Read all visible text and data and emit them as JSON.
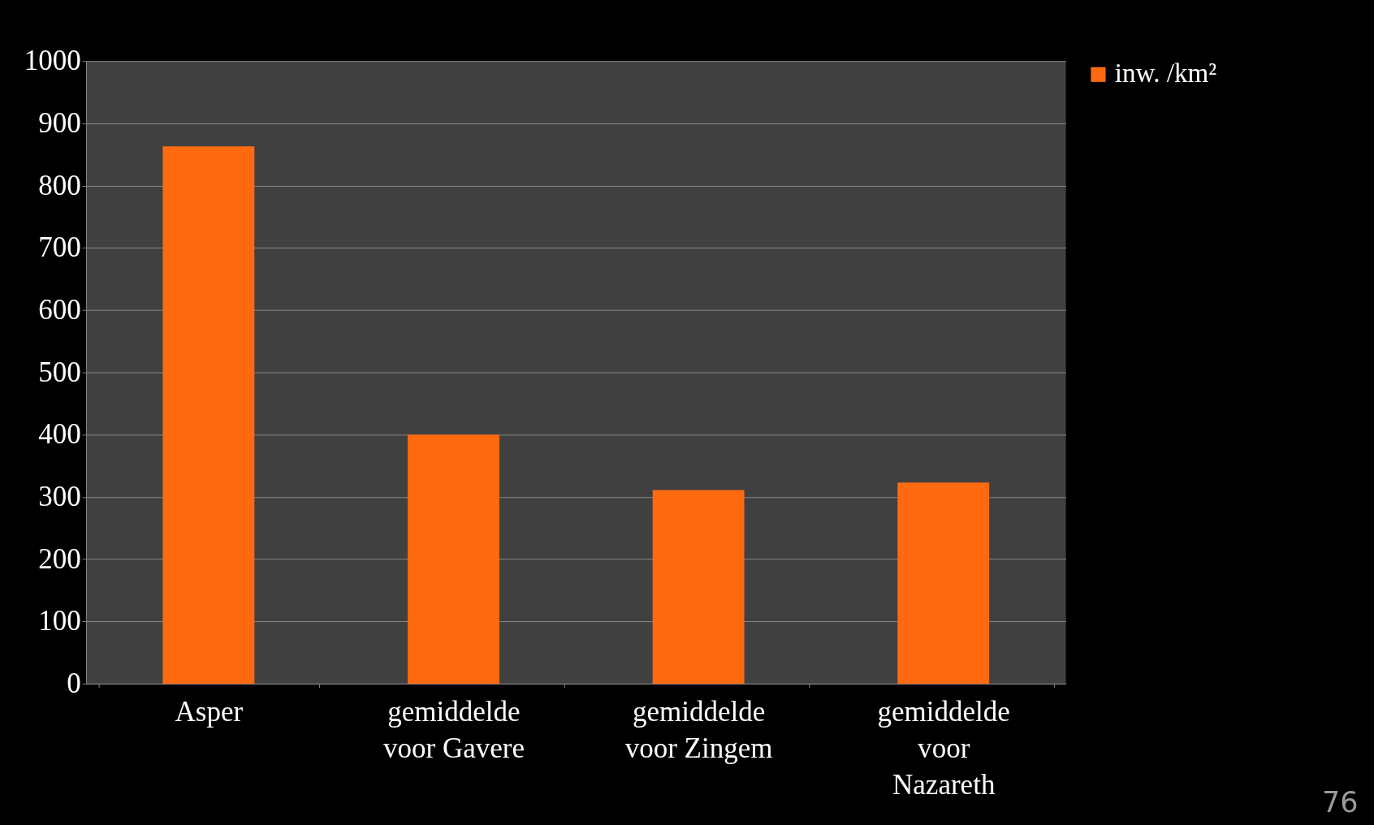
{
  "chart_data": {
    "type": "bar",
    "categories": [
      "Asper",
      "gemiddelde voor Gavere",
      "gemiddelde voor Zingem",
      "gemiddelde voor Nazareth"
    ],
    "series": [
      {
        "name": "inw. /km²",
        "color": "#ff6a10",
        "values": [
          863,
          400,
          311,
          323
        ]
      }
    ],
    "ylim": [
      0,
      1000
    ],
    "yticks": [
      0,
      100,
      200,
      300,
      400,
      500,
      600,
      700,
      800,
      900,
      1000
    ],
    "grid": "y",
    "legend": "right",
    "annotations": [
      "76"
    ]
  }
}
